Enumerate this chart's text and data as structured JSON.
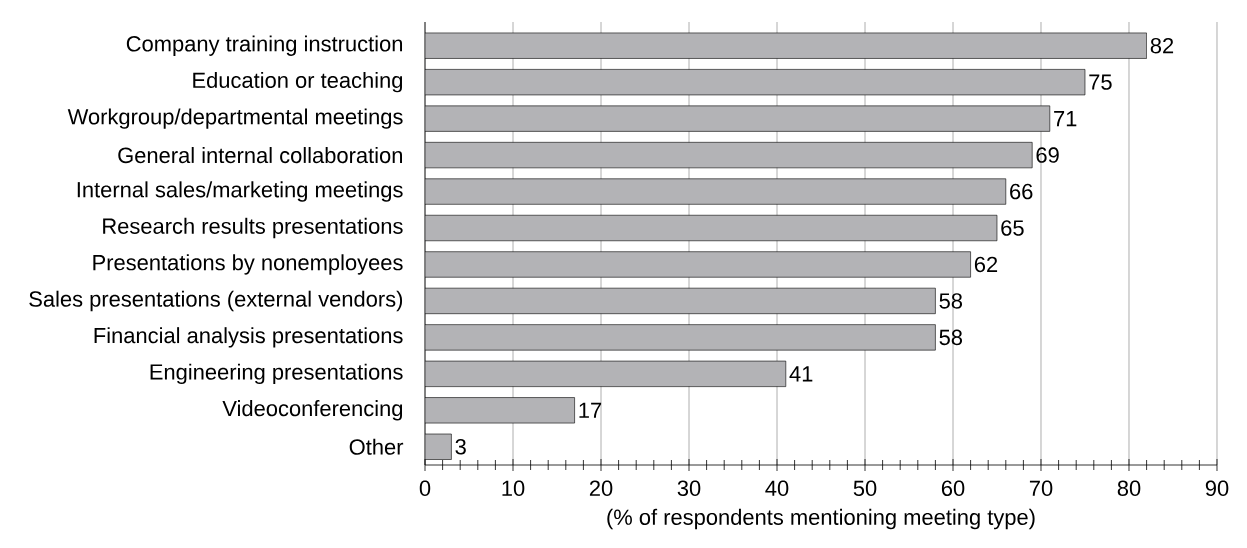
{
  "chart_data": {
    "type": "bar",
    "orientation": "horizontal",
    "categories": [
      "Company training instruction",
      "Education or teaching",
      "Workgroup/departmental meetings",
      "General internal collaboration",
      "Internal sales/marketing meetings",
      "Research results presentations",
      "Presentations by nonemployees",
      "Sales presentations (external vendors)",
      "Financial analysis presentations",
      "Engineering presentations",
      "Videoconferencing",
      "Other"
    ],
    "values": [
      82,
      75,
      71,
      69,
      66,
      65,
      62,
      58,
      58,
      41,
      17,
      3
    ],
    "color": "#b3b3b6",
    "xlim": [
      0,
      90
    ],
    "xticks": [
      0,
      10,
      20,
      30,
      40,
      50,
      60,
      70,
      80,
      90
    ],
    "xlabel": "(% of respondents mentioning meeting type)",
    "grid": "x",
    "data_labels": true
  }
}
